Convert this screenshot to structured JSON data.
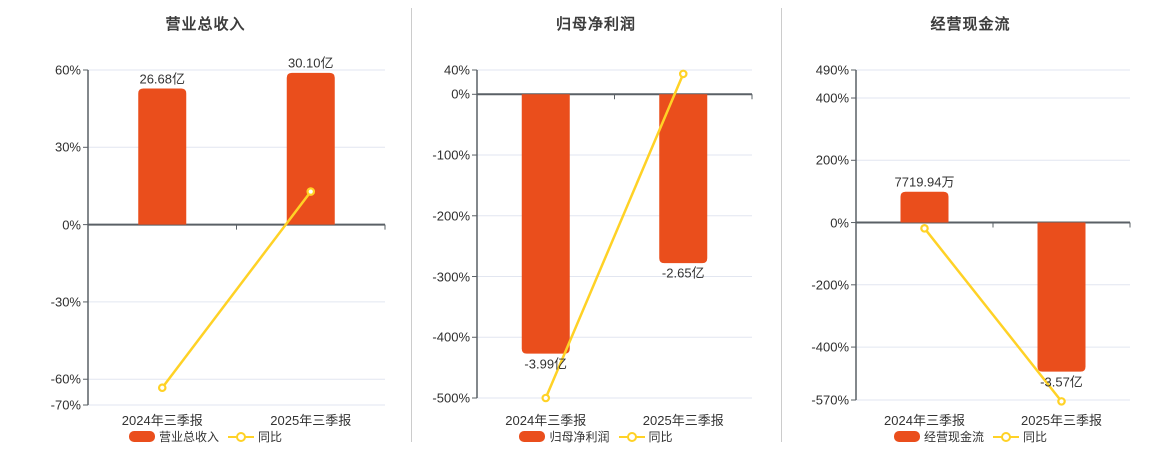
{
  "colors": {
    "bar": "#ea4e1c",
    "line": "#ffd226",
    "axis": "#5a6066",
    "grid": "#e2e6f0",
    "divider": "#cccccc",
    "text": "#333333",
    "title": "#3c3c3c"
  },
  "chart_data": [
    {
      "type": "bar",
      "title": "营业总收入",
      "categories": [
        "2024年三季报",
        "2025年三季报"
      ],
      "series": [
        {
          "name": "营业总收入",
          "kind": "bar",
          "value_labels": [
            "26.68亿",
            "30.10亿"
          ],
          "plot_pct": [
            52.8,
            58.9
          ]
        },
        {
          "name": "同比",
          "kind": "line",
          "values_pct": [
            -63.3,
            12.82
          ]
        }
      ],
      "yAxis": {
        "tick_labels": [
          "60%",
          "30%",
          "0%",
          "-30%",
          "-60%",
          "-70%"
        ],
        "tick_values": [
          60,
          30,
          0,
          -30,
          -60,
          -70
        ]
      },
      "legend": [
        "营业总收入",
        "同比"
      ],
      "grid": true,
      "legend_position": "bottom"
    },
    {
      "type": "bar",
      "title": "归母净利润",
      "categories": [
        "2024年三季报",
        "2025年三季报"
      ],
      "series": [
        {
          "name": "归母净利润",
          "kind": "bar",
          "value_labels": [
            "-3.99亿",
            "-2.65亿"
          ],
          "plot_pct": [
            -427,
            -278
          ]
        },
        {
          "name": "同比",
          "kind": "line",
          "values_pct": [
            -500,
            33.59
          ]
        }
      ],
      "yAxis": {
        "tick_labels": [
          "40%",
          "0%",
          "-100%",
          "-200%",
          "-300%",
          "-400%",
          "-500%"
        ],
        "tick_values": [
          40,
          0,
          -100,
          -200,
          -300,
          -400,
          -500
        ]
      },
      "legend": [
        "归母净利润",
        "同比"
      ],
      "grid": true,
      "legend_position": "bottom"
    },
    {
      "type": "bar",
      "title": "经营现金流",
      "categories": [
        "2024年三季报",
        "2025年三季报"
      ],
      "series": [
        {
          "name": "经营现金流",
          "kind": "bar",
          "value_labels": [
            "7719.94万",
            "-3.57亿"
          ],
          "plot_pct": [
            99,
            -479
          ]
        },
        {
          "name": "同比",
          "kind": "line",
          "values_pct": [
            -18.6,
            -574.4
          ]
        }
      ],
      "yAxis": {
        "tick_labels": [
          "490%",
          "400%",
          "200%",
          "0%",
          "-200%",
          "-400%",
          "-570%"
        ],
        "tick_values": [
          490,
          400,
          200,
          0,
          -200,
          -400,
          -570
        ]
      },
      "legend": [
        "经营现金流",
        "同比"
      ],
      "grid": true,
      "legend_position": "bottom"
    }
  ]
}
